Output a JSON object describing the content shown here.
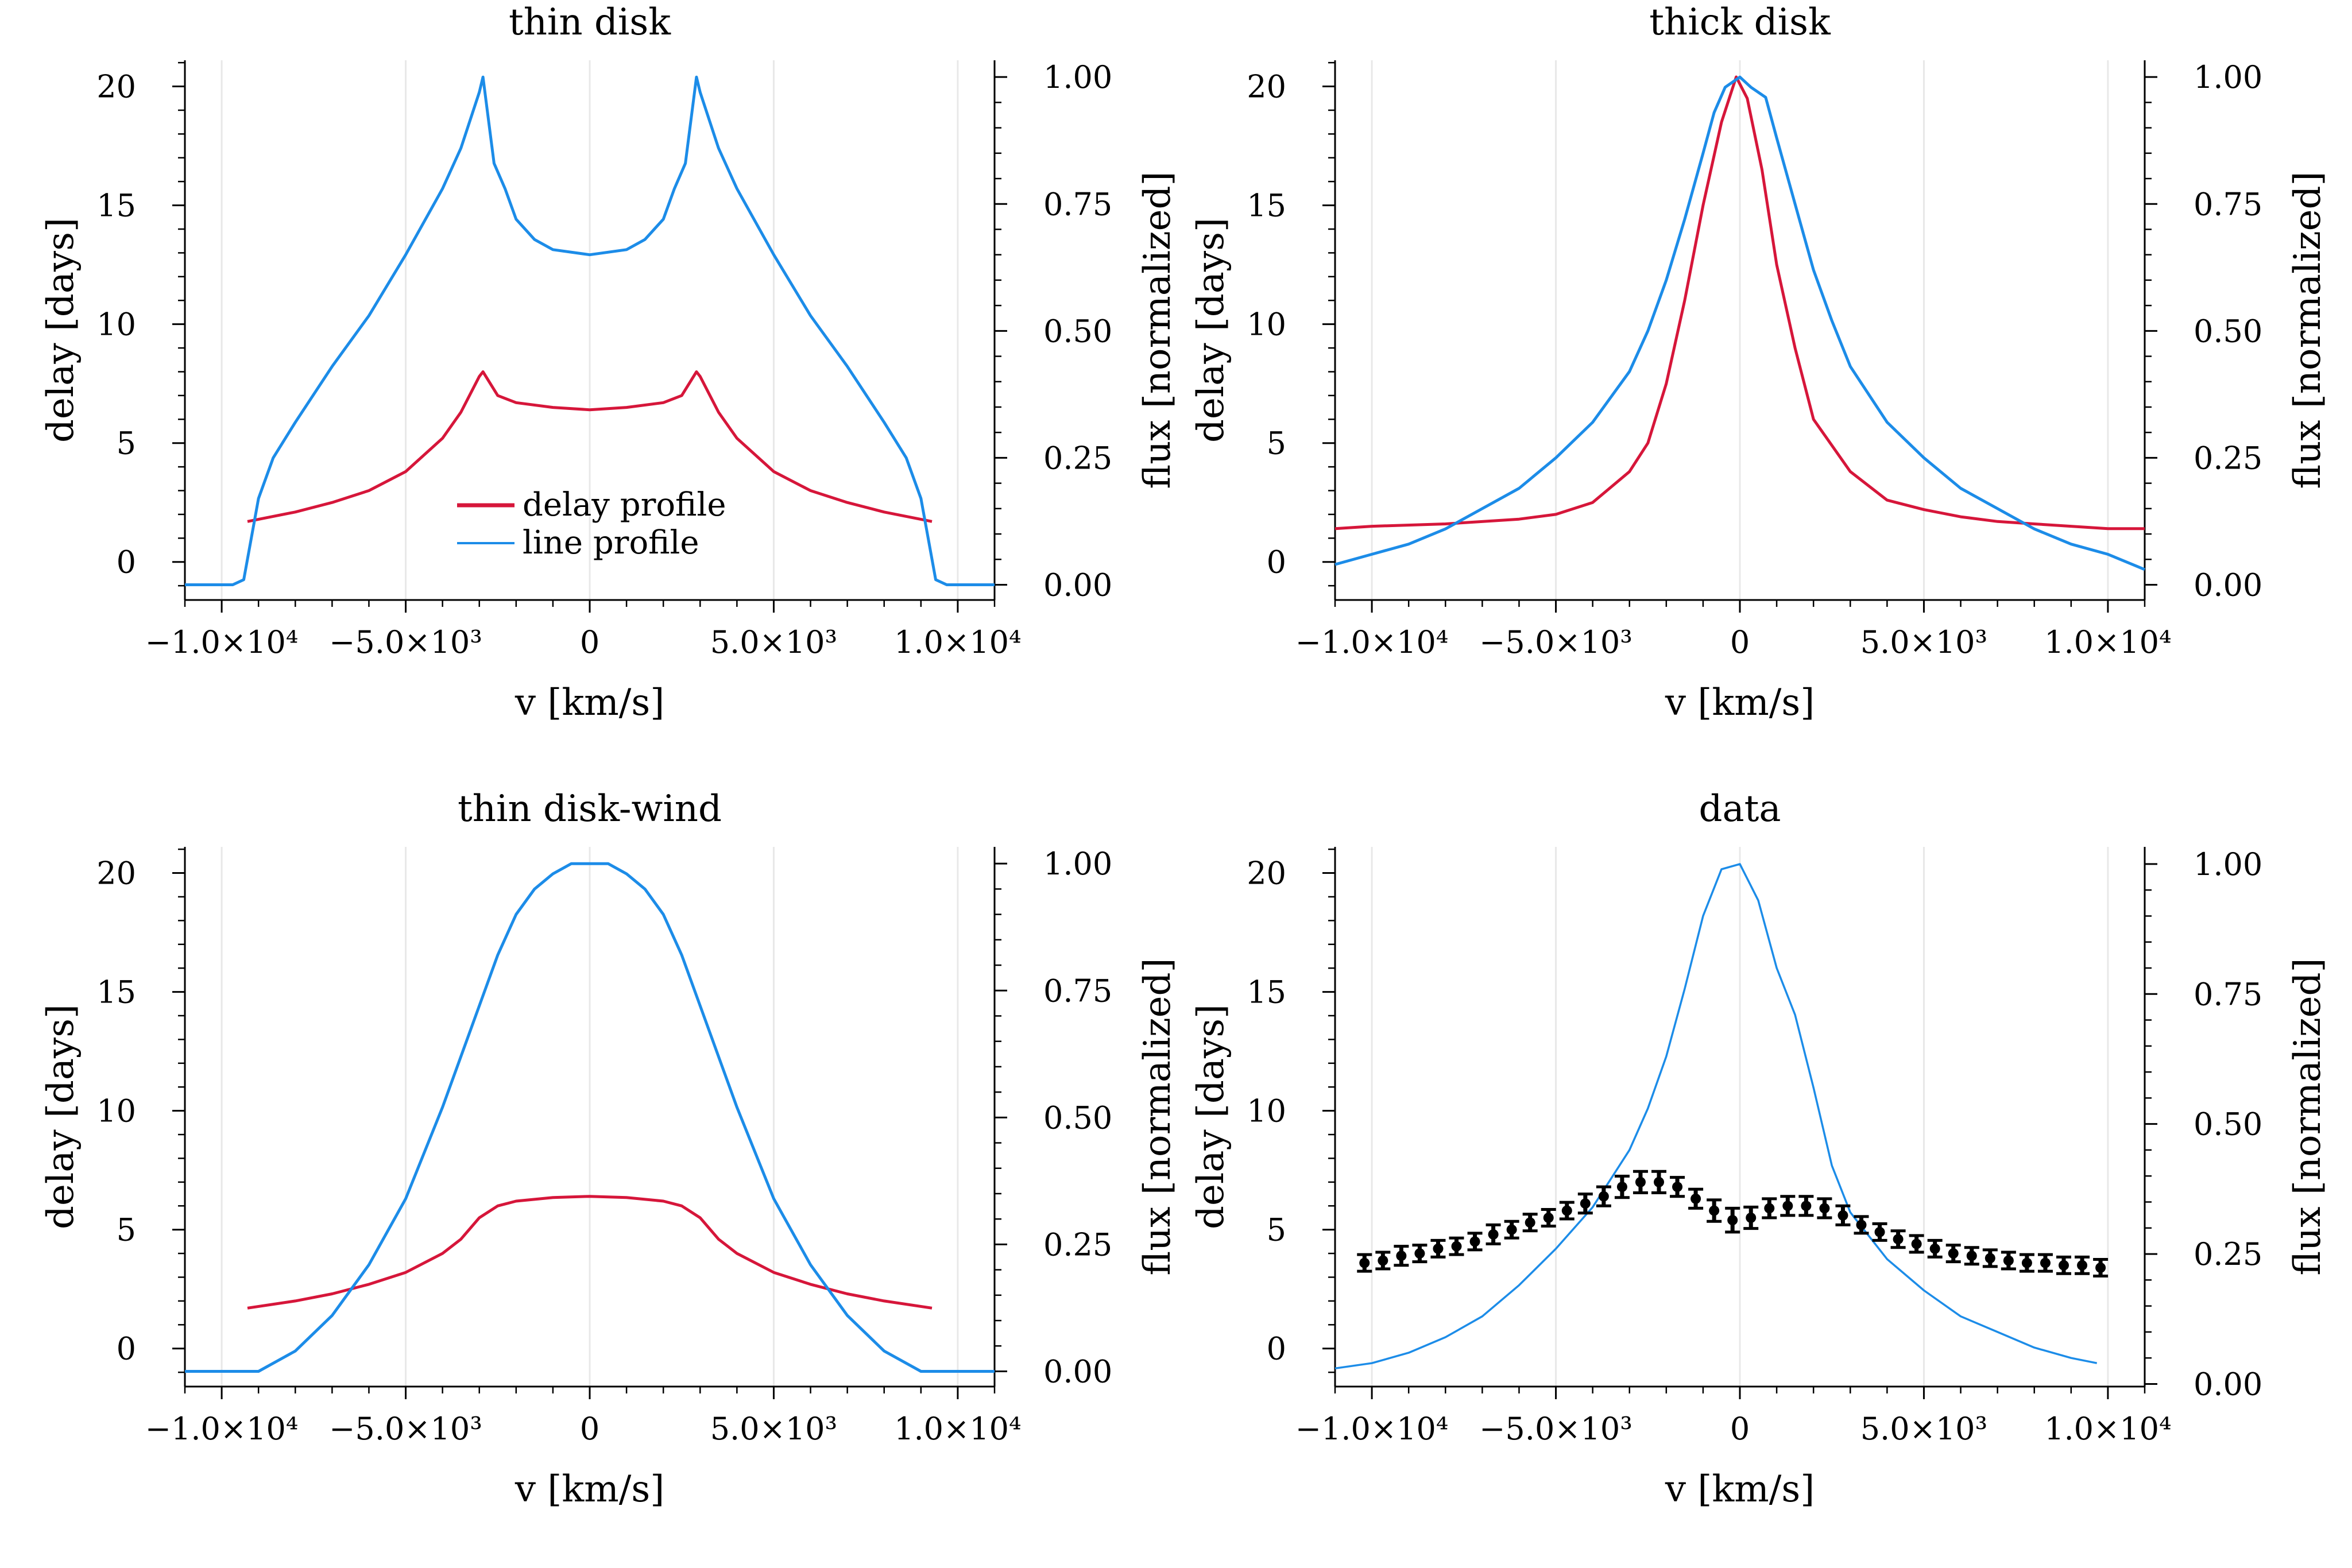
{
  "colors": {
    "delay": "#d6163a",
    "line": "#1c8ce8",
    "data": "#000000",
    "grid": "#e8e8e8"
  },
  "legend": {
    "delay_label": "delay profile",
    "line_label": "line profile"
  },
  "chart_data": [
    {
      "type": "line",
      "title": "thin disk",
      "xlabel": "v [km/s]",
      "ylabel_left": "delay [days]",
      "ylabel_right": "flux [normalized]",
      "xlim": [
        -11000,
        11000
      ],
      "ylim_left": [
        -1.6,
        21.1
      ],
      "ylim_right": [
        -0.03,
        1.033
      ],
      "xticks": [
        [
          -10000,
          "−1.0×10⁴"
        ],
        [
          -5000,
          "−5.0×10³"
        ],
        [
          0,
          "0"
        ],
        [
          5000,
          "5.0×10³"
        ],
        [
          10000,
          "1.0×10⁴"
        ]
      ],
      "yticks_left": [
        [
          0,
          "0"
        ],
        [
          5,
          "5"
        ],
        [
          10,
          "10"
        ],
        [
          15,
          "15"
        ],
        [
          20,
          "20"
        ]
      ],
      "yticks_right": [
        [
          0,
          "0.00"
        ],
        [
          0.25,
          "0.25"
        ],
        [
          0.5,
          "0.50"
        ],
        [
          0.75,
          "0.75"
        ],
        [
          1.0,
          "1.00"
        ]
      ],
      "legend": "lower-center",
      "series": [
        {
          "name": "delay profile",
          "axis": "left",
          "x": [
            -9300,
            -8000,
            -7000,
            -6000,
            -5000,
            -4000,
            -3500,
            -3000,
            -2900,
            -2500,
            -2000,
            -1000,
            0,
            1000,
            2000,
            2500,
            2900,
            3000,
            3500,
            4000,
            5000,
            6000,
            7000,
            8000,
            9300
          ],
          "y": [
            1.7,
            2.1,
            2.5,
            3.0,
            3.8,
            5.2,
            6.3,
            7.8,
            8.0,
            7.0,
            6.7,
            6.5,
            6.4,
            6.5,
            6.7,
            7.0,
            8.0,
            7.8,
            6.3,
            5.2,
            3.8,
            3.0,
            2.5,
            2.1,
            1.7
          ]
        },
        {
          "name": "line profile",
          "axis": "right",
          "x": [
            -11000,
            -9700,
            -9400,
            -9000,
            -8600,
            -8000,
            -7000,
            -6000,
            -5000,
            -4000,
            -3500,
            -3000,
            -2900,
            -2600,
            -2300,
            -2000,
            -1500,
            -1000,
            0,
            1000,
            1500,
            2000,
            2300,
            2600,
            2900,
            3000,
            3500,
            4000,
            5000,
            6000,
            7000,
            8000,
            8600,
            9000,
            9400,
            9700,
            11000
          ],
          "y": [
            0.0,
            0.0,
            0.01,
            0.17,
            0.25,
            0.32,
            0.43,
            0.53,
            0.65,
            0.78,
            0.86,
            0.97,
            1.0,
            0.83,
            0.78,
            0.72,
            0.68,
            0.66,
            0.65,
            0.66,
            0.68,
            0.72,
            0.78,
            0.83,
            1.0,
            0.97,
            0.86,
            0.78,
            0.65,
            0.53,
            0.43,
            0.32,
            0.25,
            0.17,
            0.01,
            0.0,
            0.0
          ]
        }
      ]
    },
    {
      "type": "line",
      "title": "thick disk",
      "xlabel": "v [km/s]",
      "ylabel_left": "delay [days]",
      "ylabel_right": "flux [normalized]",
      "xlim": [
        -11000,
        11000
      ],
      "ylim_left": [
        -1.6,
        21.1
      ],
      "ylim_right": [
        -0.03,
        1.033
      ],
      "xticks": [
        [
          -10000,
          "−1.0×10⁴"
        ],
        [
          -5000,
          "−5.0×10³"
        ],
        [
          0,
          "0"
        ],
        [
          5000,
          "5.0×10³"
        ],
        [
          10000,
          "1.0×10⁴"
        ]
      ],
      "yticks_left": [
        [
          0,
          "0"
        ],
        [
          5,
          "5"
        ],
        [
          10,
          "10"
        ],
        [
          15,
          "15"
        ],
        [
          20,
          "20"
        ]
      ],
      "yticks_right": [
        [
          0,
          "0.00"
        ],
        [
          0.25,
          "0.25"
        ],
        [
          0.5,
          "0.50"
        ],
        [
          0.75,
          "0.75"
        ],
        [
          1.0,
          "1.00"
        ]
      ],
      "series": [
        {
          "name": "delay profile",
          "axis": "left",
          "x": [
            -11000,
            -10000,
            -8000,
            -6000,
            -5000,
            -4000,
            -3000,
            -2500,
            -2000,
            -1500,
            -1000,
            -500,
            -100,
            200,
            600,
            1000,
            1500,
            2000,
            3000,
            4000,
            5000,
            6000,
            7000,
            8000,
            9000,
            10000,
            11000
          ],
          "y": [
            1.4,
            1.5,
            1.6,
            1.8,
            2.0,
            2.5,
            3.8,
            5.0,
            7.5,
            11.0,
            15.0,
            18.5,
            20.4,
            19.5,
            16.5,
            12.5,
            9.0,
            6.0,
            3.8,
            2.6,
            2.2,
            1.9,
            1.7,
            1.6,
            1.5,
            1.4,
            1.4
          ]
        },
        {
          "name": "line profile",
          "axis": "right",
          "x": [
            -11000,
            -10000,
            -9000,
            -8000,
            -7000,
            -6000,
            -5000,
            -4000,
            -3000,
            -2500,
            -2000,
            -1500,
            -1000,
            -700,
            -400,
            0,
            300,
            700,
            1000,
            1500,
            2000,
            2500,
            3000,
            4000,
            5000,
            6000,
            7000,
            8000,
            9000,
            10000,
            11000
          ],
          "y": [
            0.04,
            0.06,
            0.08,
            0.11,
            0.15,
            0.19,
            0.25,
            0.32,
            0.42,
            0.5,
            0.6,
            0.72,
            0.85,
            0.93,
            0.98,
            1.0,
            0.98,
            0.96,
            0.88,
            0.75,
            0.62,
            0.52,
            0.43,
            0.32,
            0.25,
            0.19,
            0.15,
            0.11,
            0.08,
            0.06,
            0.03
          ]
        }
      ]
    },
    {
      "type": "line",
      "title": "thin disk-wind",
      "xlabel": "v [km/s]",
      "ylabel_left": "delay [days]",
      "ylabel_right": "flux [normalized]",
      "xlim": [
        -11000,
        11000
      ],
      "ylim_left": [
        -1.6,
        21.1
      ],
      "ylim_right": [
        -0.03,
        1.033
      ],
      "xticks": [
        [
          -10000,
          "−1.0×10⁴"
        ],
        [
          -5000,
          "−5.0×10³"
        ],
        [
          0,
          "0"
        ],
        [
          5000,
          "5.0×10³"
        ],
        [
          10000,
          "1.0×10⁴"
        ]
      ],
      "yticks_left": [
        [
          0,
          "0"
        ],
        [
          5,
          "5"
        ],
        [
          10,
          "10"
        ],
        [
          15,
          "15"
        ],
        [
          20,
          "20"
        ]
      ],
      "yticks_right": [
        [
          0,
          "0.00"
        ],
        [
          0.25,
          "0.25"
        ],
        [
          0.5,
          "0.50"
        ],
        [
          0.75,
          "0.75"
        ],
        [
          1.0,
          "1.00"
        ]
      ],
      "series": [
        {
          "name": "delay profile",
          "axis": "left",
          "x": [
            -9300,
            -8000,
            -7000,
            -6000,
            -5000,
            -4000,
            -3500,
            -3000,
            -2500,
            -2000,
            -1000,
            0,
            1000,
            2000,
            2500,
            3000,
            3500,
            4000,
            5000,
            6000,
            7000,
            8000,
            9300
          ],
          "y": [
            1.7,
            2.0,
            2.3,
            2.7,
            3.2,
            4.0,
            4.6,
            5.5,
            6.0,
            6.2,
            6.35,
            6.4,
            6.35,
            6.2,
            6.0,
            5.5,
            4.6,
            4.0,
            3.2,
            2.7,
            2.3,
            2.0,
            1.7
          ]
        },
        {
          "name": "line profile",
          "axis": "right",
          "x": [
            -11000,
            -9000,
            -8500,
            -8000,
            -7000,
            -6000,
            -5000,
            -4000,
            -3000,
            -2500,
            -2000,
            -1500,
            -1000,
            -500,
            0,
            500,
            1000,
            1500,
            2000,
            2500,
            3000,
            4000,
            5000,
            6000,
            7000,
            8000,
            8500,
            9000,
            11000
          ],
          "y": [
            0.0,
            0.0,
            0.02,
            0.04,
            0.11,
            0.21,
            0.34,
            0.52,
            0.72,
            0.82,
            0.9,
            0.95,
            0.98,
            1.0,
            1.0,
            1.0,
            0.98,
            0.95,
            0.9,
            0.82,
            0.72,
            0.52,
            0.34,
            0.21,
            0.11,
            0.04,
            0.02,
            0.0,
            0.0
          ]
        }
      ]
    },
    {
      "type": "line",
      "title": "data",
      "xlabel": "v [km/s]",
      "ylabel_left": "delay [days]",
      "ylabel_right": "flux [normalized]",
      "xlim": [
        -11000,
        11000
      ],
      "ylim_left": [
        -1.6,
        21.1
      ],
      "ylim_right": [
        -0.005,
        1.033
      ],
      "xticks": [
        [
          -10000,
          "−1.0×10⁴"
        ],
        [
          -5000,
          "−5.0×10³"
        ],
        [
          0,
          "0"
        ],
        [
          5000,
          "5.0×10³"
        ],
        [
          10000,
          "1.0×10⁴"
        ]
      ],
      "yticks_left": [
        [
          0,
          "0"
        ],
        [
          5,
          "5"
        ],
        [
          10,
          "10"
        ],
        [
          15,
          "15"
        ],
        [
          20,
          "20"
        ]
      ],
      "yticks_right": [
        [
          0,
          "0.00"
        ],
        [
          0.25,
          "0.25"
        ],
        [
          0.5,
          "0.50"
        ],
        [
          0.75,
          "0.75"
        ],
        [
          1.0,
          "1.00"
        ]
      ],
      "series": [
        {
          "name": "line profile",
          "axis": "right",
          "x": [
            -11000,
            -10000,
            -9000,
            -8000,
            -7000,
            -6000,
            -5000,
            -4000,
            -3000,
            -2500,
            -2000,
            -1500,
            -1000,
            -500,
            0,
            500,
            1000,
            1500,
            2000,
            2500,
            3000,
            4000,
            5000,
            6000,
            7000,
            8000,
            9000,
            9700
          ],
          "y": [
            0.03,
            0.04,
            0.06,
            0.09,
            0.13,
            0.19,
            0.26,
            0.34,
            0.45,
            0.53,
            0.63,
            0.76,
            0.9,
            0.99,
            1.0,
            0.93,
            0.8,
            0.71,
            0.57,
            0.42,
            0.33,
            0.24,
            0.18,
            0.13,
            0.1,
            0.07,
            0.05,
            0.04
          ]
        },
        {
          "name": "delay data",
          "axis": "left",
          "kind": "errorbar",
          "x": [
            -10200,
            -9700,
            -9200,
            -8700,
            -8200,
            -7700,
            -7200,
            -6700,
            -6200,
            -5700,
            -5200,
            -4700,
            -4200,
            -3700,
            -3200,
            -2700,
            -2200,
            -1700,
            -1200,
            -700,
            -200,
            300,
            800,
            1300,
            1800,
            2300,
            2800,
            3300,
            3800,
            4300,
            4800,
            5300,
            5800,
            6300,
            6800,
            7300,
            7800,
            8300,
            8800,
            9300,
            9800
          ],
          "y": [
            3.6,
            3.7,
            3.9,
            4.0,
            4.2,
            4.3,
            4.5,
            4.8,
            5.0,
            5.3,
            5.5,
            5.8,
            6.1,
            6.4,
            6.8,
            7.0,
            7.0,
            6.8,
            6.3,
            5.8,
            5.4,
            5.5,
            5.9,
            6.0,
            6.0,
            5.9,
            5.6,
            5.2,
            4.9,
            4.6,
            4.4,
            4.2,
            4.0,
            3.9,
            3.8,
            3.7,
            3.6,
            3.6,
            3.5,
            3.5,
            3.4
          ],
          "err": [
            0.35,
            0.35,
            0.4,
            0.35,
            0.35,
            0.35,
            0.35,
            0.4,
            0.35,
            0.35,
            0.35,
            0.35,
            0.4,
            0.4,
            0.45,
            0.45,
            0.45,
            0.4,
            0.4,
            0.45,
            0.5,
            0.45,
            0.4,
            0.4,
            0.4,
            0.4,
            0.4,
            0.35,
            0.35,
            0.35,
            0.35,
            0.35,
            0.35,
            0.35,
            0.35,
            0.35,
            0.35,
            0.35,
            0.35,
            0.35,
            0.35
          ]
        }
      ]
    }
  ]
}
